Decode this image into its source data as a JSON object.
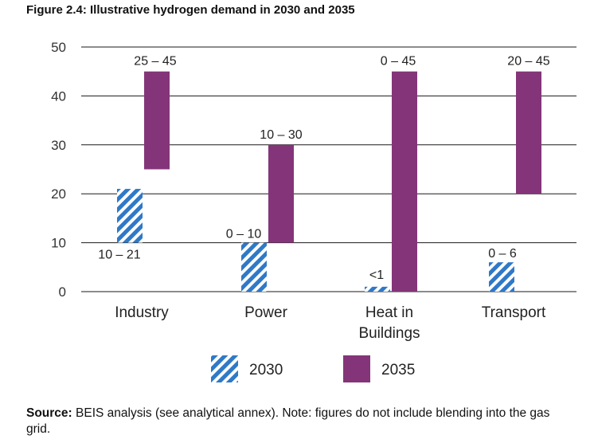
{
  "figure_title": "Figure 2.4: Illustrative hydrogen demand in 2030 and 2035",
  "source": {
    "label": "Source:",
    "text": " BEIS analysis (see analytical annex). Note: figures do not include blending into the gas grid."
  },
  "colors": {
    "2030": "#2f79c7",
    "2035": "#843579",
    "grid": "#1a1a1a"
  },
  "chart_data": {
    "type": "bar",
    "title": "",
    "xlabel": "",
    "ylabel": "",
    "ylim": [
      0,
      50
    ],
    "yticks": [
      "0",
      "10",
      "20",
      "30",
      "40",
      "50"
    ],
    "grid": true,
    "legend_position": "bottom",
    "categories": [
      {
        "lines": [
          "Industry"
        ]
      },
      {
        "lines": [
          "Power"
        ]
      },
      {
        "lines": [
          "Heat in",
          "Buildings"
        ]
      },
      {
        "lines": [
          "Transport"
        ]
      }
    ],
    "series": [
      {
        "name": "2030",
        "pattern": "diagonal-hatch",
        "ranges": [
          [
            0,
            21
          ],
          [
            0,
            10
          ],
          [
            0,
            1
          ],
          [
            0,
            6
          ]
        ],
        "labels": [
          "10 – 21",
          "0 – 10",
          "<1",
          "0 – 6"
        ],
        "base_visible": [
          10,
          0,
          0,
          0
        ]
      },
      {
        "name": "2035",
        "pattern": "solid",
        "ranges": [
          [
            25,
            45
          ],
          [
            10,
            30
          ],
          [
            0,
            45
          ],
          [
            20,
            45
          ]
        ],
        "labels": [
          "25 – 45",
          "10 – 30",
          "0 – 45",
          "20 – 45"
        ]
      }
    ]
  }
}
